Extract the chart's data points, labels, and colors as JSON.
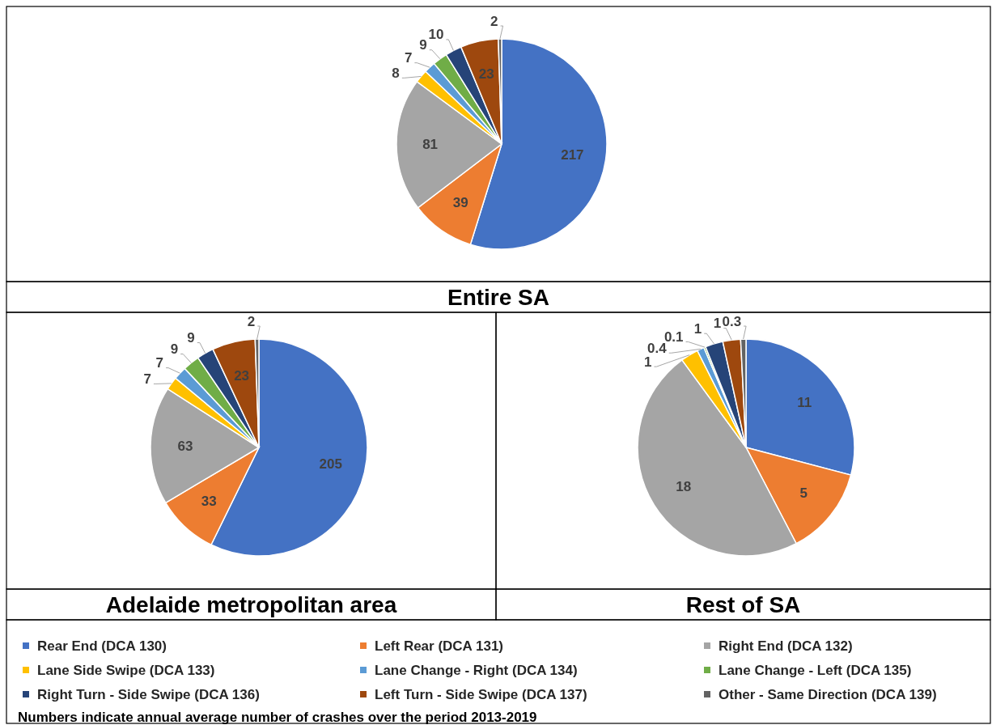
{
  "chart_data": [
    {
      "type": "pie",
      "title": "Entire SA",
      "categories": [
        "Rear End (DCA 130)",
        "Left Rear (DCA 131)",
        "Right End (DCA 132)",
        "Lane Side Swipe (DCA 133)",
        "Lane Change - Right (DCA 134)",
        "Lane Change - Left (DCA 135)",
        "Right Turn - Side Swipe (DCA 136)",
        "Left Turn - Side Swipe (DCA 137)",
        "Other - Same Direction (DCA 139)"
      ],
      "values": [
        217,
        39,
        81,
        8,
        7,
        9,
        10,
        23,
        2
      ],
      "colors": [
        "#4472c4",
        "#ed7d31",
        "#a5a5a5",
        "#ffc000",
        "#5b9bd5",
        "#70ad47",
        "#264478",
        "#9e480e",
        "#636363"
      ],
      "data_labels": true,
      "legend": "bottom",
      "annotations": [
        "Numbers indicate annual average number of crashes over the period 2013-2019"
      ]
    },
    {
      "type": "pie",
      "title": "Adelaide metropolitan area",
      "values": [
        205,
        33,
        63,
        7,
        7,
        9,
        9,
        23,
        2
      ],
      "colors": [
        "#4472c4",
        "#ed7d31",
        "#a5a5a5",
        "#ffc000",
        "#5b9bd5",
        "#70ad47",
        "#264478",
        "#9e480e",
        "#636363"
      ],
      "data_labels": true
    },
    {
      "type": "pie",
      "title": "Rest of SA",
      "values": [
        11,
        5,
        18,
        1,
        0.4,
        0.1,
        1,
        1,
        0.3
      ],
      "colors": [
        "#4472c4",
        "#ed7d31",
        "#a5a5a5",
        "#ffc000",
        "#5b9bd5",
        "#70ad47",
        "#264478",
        "#9e480e",
        "#636363"
      ],
      "data_labels": true
    }
  ]
}
